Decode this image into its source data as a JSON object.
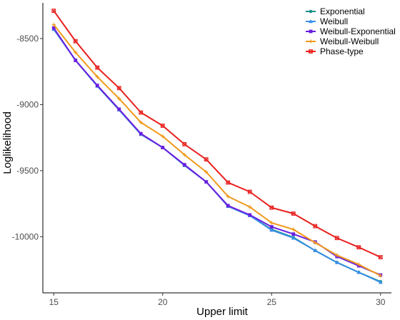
{
  "chart_data": {
    "type": "line",
    "title": "",
    "xlabel": "Upper limit",
    "ylabel": "Loglikelihood",
    "xlim": [
      14.5,
      30.5
    ],
    "ylim": [
      -10425,
      -8230
    ],
    "x_ticks": [
      15,
      20,
      25,
      30
    ],
    "y_ticks": [
      -10000,
      -9500,
      -9000,
      -8500
    ],
    "grid": false,
    "legend_position": "top-right",
    "x": [
      15,
      16,
      17,
      18,
      19,
      20,
      21,
      22,
      23,
      24,
      25,
      26,
      27,
      28,
      29,
      30
    ],
    "series": [
      {
        "name": "Exponential",
        "color": "#17908a",
        "marker": "circle",
        "values": [
          -8425,
          -8665,
          -8860,
          -9040,
          -9225,
          -9325,
          -9460,
          -9585,
          -9770,
          -9840,
          -9945,
          -10005,
          -10105,
          -10195,
          -10270,
          -10340
        ]
      },
      {
        "name": "Weibull",
        "color": "#3a8fe8",
        "marker": "triangle",
        "values": [
          -8430,
          -8665,
          -8860,
          -9040,
          -9225,
          -9325,
          -9460,
          -9585,
          -9770,
          -9840,
          -9950,
          -10010,
          -10105,
          -10195,
          -10270,
          -10345
        ]
      },
      {
        "name": "Weibull-Exponential",
        "color": "#6a1fe0",
        "marker": "square",
        "values": [
          -8420,
          -8665,
          -8855,
          -9035,
          -9220,
          -9325,
          -9455,
          -9585,
          -9765,
          -9835,
          -9925,
          -9980,
          -10040,
          -10150,
          -10220,
          -10290
        ]
      },
      {
        "name": "Weibull-Weibull",
        "color": "#f09a1c",
        "marker": "plus",
        "values": [
          -8395,
          -8605,
          -8790,
          -8955,
          -9135,
          -9240,
          -9380,
          -9510,
          -9695,
          -9775,
          -9895,
          -9945,
          -10045,
          -10140,
          -10210,
          -10295
        ]
      },
      {
        "name": "Phase-type",
        "color": "#e8201e",
        "marker": "cross",
        "values": [
          -8290,
          -8520,
          -8720,
          -8875,
          -9060,
          -9160,
          -9300,
          -9415,
          -9590,
          -9660,
          -9780,
          -9825,
          -9920,
          -10010,
          -10080,
          -10155
        ]
      }
    ]
  }
}
